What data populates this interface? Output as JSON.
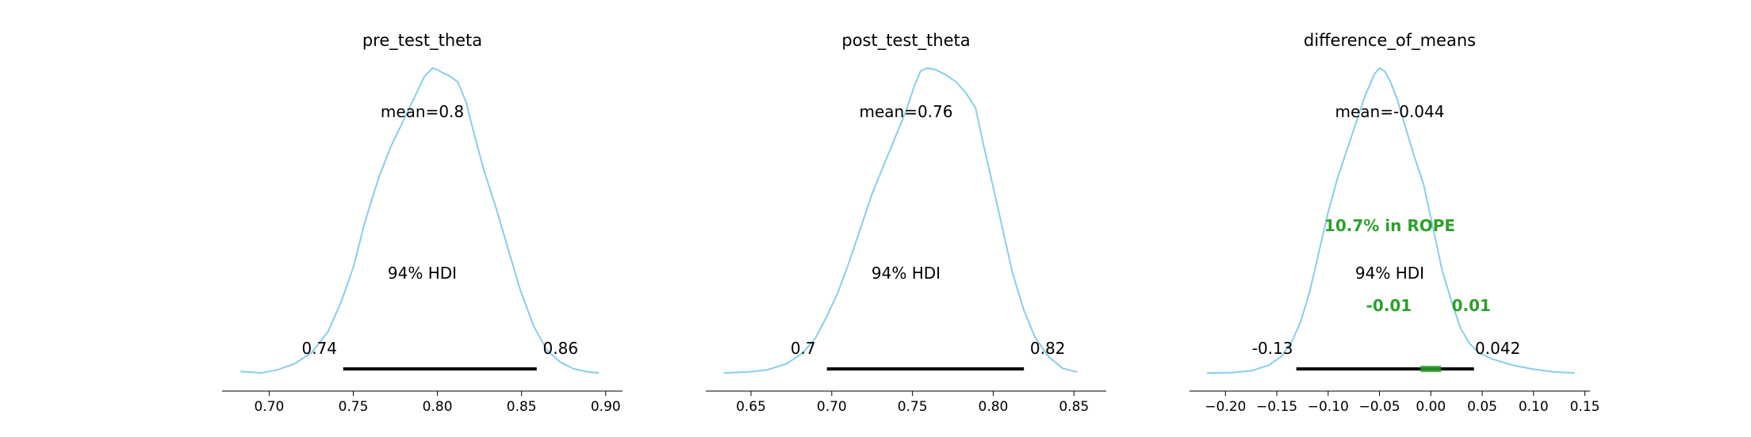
{
  "colors": {
    "curve": "#87ceeb",
    "hdi_bar": "#000000",
    "rope": "#2ca02c",
    "axis": "#000000"
  },
  "chart_data": [
    {
      "type": "line",
      "title": "pre_test_theta",
      "mean_label": "mean=0.8",
      "hdi_label": "94% HDI",
      "hdi": [
        0.744,
        0.859
      ],
      "hdi_labels": [
        "0.74",
        "0.86"
      ],
      "xlim": [
        0.672,
        0.91
      ],
      "xticks": [
        0.7,
        0.75,
        0.8,
        0.85,
        0.9
      ],
      "xtick_labels": [
        "0.70",
        "0.75",
        "0.80",
        "0.85",
        "0.90"
      ],
      "density": {
        "x": [
          0.683,
          0.695,
          0.705,
          0.715,
          0.725,
          0.735,
          0.743,
          0.75,
          0.757,
          0.765,
          0.772,
          0.779,
          0.786,
          0.792,
          0.797,
          0.8,
          0.803,
          0.807,
          0.812,
          0.817,
          0.822,
          0.828,
          0.835,
          0.842,
          0.849,
          0.857,
          0.865,
          0.873,
          0.881,
          0.89,
          0.896
        ],
        "y": [
          0.01,
          0.005,
          0.015,
          0.035,
          0.07,
          0.14,
          0.24,
          0.35,
          0.5,
          0.64,
          0.74,
          0.82,
          0.9,
          0.97,
          1.0,
          0.995,
          0.985,
          0.975,
          0.955,
          0.89,
          0.78,
          0.66,
          0.54,
          0.41,
          0.28,
          0.16,
          0.08,
          0.04,
          0.018,
          0.008,
          0.005
        ]
      }
    },
    {
      "type": "line",
      "title": "post_test_theta",
      "mean_label": "mean=0.76",
      "hdi_label": "94% HDI",
      "hdi": [
        0.697,
        0.819
      ],
      "hdi_labels": [
        "0.7",
        "0.82"
      ],
      "xlim": [
        0.622,
        0.87
      ],
      "xticks": [
        0.65,
        0.7,
        0.75,
        0.8,
        0.85
      ],
      "xtick_labels": [
        "0.65",
        "0.70",
        "0.75",
        "0.80",
        "0.85"
      ],
      "density": {
        "x": [
          0.633,
          0.648,
          0.66,
          0.672,
          0.682,
          0.69,
          0.697,
          0.704,
          0.711,
          0.718,
          0.725,
          0.732,
          0.739,
          0.746,
          0.751,
          0.755,
          0.759,
          0.764,
          0.77,
          0.777,
          0.783,
          0.789,
          0.794,
          0.8,
          0.806,
          0.812,
          0.819,
          0.826,
          0.834,
          0.843,
          0.852
        ],
        "y": [
          0.005,
          0.008,
          0.015,
          0.035,
          0.07,
          0.12,
          0.19,
          0.27,
          0.37,
          0.48,
          0.59,
          0.68,
          0.77,
          0.86,
          0.94,
          0.99,
          1.0,
          0.995,
          0.98,
          0.955,
          0.92,
          0.87,
          0.75,
          0.61,
          0.47,
          0.33,
          0.21,
          0.12,
          0.06,
          0.02,
          0.008
        ]
      }
    },
    {
      "type": "line",
      "title": "difference_of_means",
      "mean_label": "mean=-0.044",
      "hdi_label": "94% HDI",
      "hdi": [
        -0.131,
        0.042
      ],
      "hdi_labels": [
        "-0.13",
        "0.042"
      ],
      "rope": [
        -0.01,
        0.01
      ],
      "rope_label": "10.7% in ROPE",
      "rope_labels": [
        "-0.01",
        "0.01"
      ],
      "xlim": [
        -0.235,
        0.155
      ],
      "xticks": [
        -0.2,
        -0.15,
        -0.1,
        -0.05,
        0.0,
        0.05,
        0.1,
        0.15
      ],
      "xtick_labels": [
        "−0.20",
        "−0.15",
        "−0.10",
        "−0.05",
        "0.00",
        "0.05",
        "0.10",
        "0.15"
      ],
      "density": {
        "x": [
          -0.218,
          -0.195,
          -0.175,
          -0.158,
          -0.145,
          -0.135,
          -0.127,
          -0.118,
          -0.109,
          -0.1,
          -0.091,
          -0.082,
          -0.073,
          -0.064,
          -0.055,
          -0.05,
          -0.045,
          -0.04,
          -0.033,
          -0.025,
          -0.016,
          -0.007,
          0.002,
          0.011,
          0.02,
          0.029,
          0.038,
          0.047,
          0.06,
          0.08,
          0.1,
          0.12,
          0.14
        ],
        "y": [
          0.005,
          0.006,
          0.012,
          0.03,
          0.06,
          0.11,
          0.17,
          0.27,
          0.4,
          0.53,
          0.64,
          0.73,
          0.82,
          0.91,
          0.98,
          1.0,
          0.99,
          0.96,
          0.9,
          0.81,
          0.71,
          0.62,
          0.48,
          0.34,
          0.24,
          0.15,
          0.1,
          0.07,
          0.05,
          0.03,
          0.017,
          0.008,
          0.005
        ]
      }
    }
  ]
}
